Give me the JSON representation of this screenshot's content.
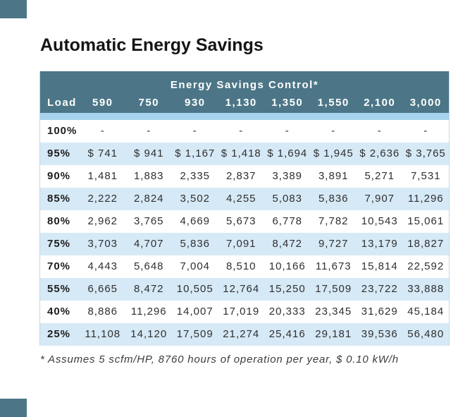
{
  "page": {
    "title": "Automatic Energy Savings"
  },
  "colors": {
    "header_teal": "#4c7687",
    "separator_strip_blue": "#a8d3ee",
    "alt_row_blue": "#d6e9f6",
    "row_white": "#ffffff",
    "text_dark": "#2f2f2f"
  },
  "chart_data": {
    "type": "table",
    "title": "Automatic Energy Savings",
    "group_header": "Energy Savings Control*",
    "columns": [
      "Load",
      "590",
      "750",
      "930",
      "1,130",
      "1,350",
      "1,550",
      "2,100",
      "3,000"
    ],
    "rows": [
      {
        "load": "100%",
        "values": [
          "-",
          "-",
          "-",
          "-",
          "-",
          "-",
          "-",
          "-"
        ]
      },
      {
        "load": "95%",
        "values": [
          "$ 741",
          "$ 941",
          "$ 1,167",
          "$ 1,418",
          "$ 1,694",
          "$ 1,945",
          "$ 2,636",
          "$ 3,765"
        ]
      },
      {
        "load": "90%",
        "values": [
          "1,481",
          "1,883",
          "2,335",
          "2,837",
          "3,389",
          "3,891",
          "5,271",
          "7,531"
        ]
      },
      {
        "load": "85%",
        "values": [
          "2,222",
          "2,824",
          "3,502",
          "4,255",
          "5,083",
          "5,836",
          "7,907",
          "11,296"
        ]
      },
      {
        "load": "80%",
        "values": [
          "2,962",
          "3,765",
          "4,669",
          "5,673",
          "6,778",
          "7,782",
          "10,543",
          "15,061"
        ]
      },
      {
        "load": "75%",
        "values": [
          "3,703",
          "4,707",
          "5,836",
          "7,091",
          "8,472",
          "9,727",
          "13,179",
          "18,827"
        ]
      },
      {
        "load": "70%",
        "values": [
          "4,443",
          "5,648",
          "7,004",
          "8,510",
          "10,166",
          "11,673",
          "15,814",
          "22,592"
        ]
      },
      {
        "load": "55%",
        "values": [
          "6,665",
          "8,472",
          "10,505",
          "12,764",
          "15,250",
          "17,509",
          "23,722",
          "33,888"
        ]
      },
      {
        "load": "40%",
        "values": [
          "8,886",
          "11,296",
          "14,007",
          "17,019",
          "20,333",
          "23,345",
          "31,629",
          "45,184"
        ]
      },
      {
        "load": "25%",
        "values": [
          "11,108",
          "14,120",
          "17,509",
          "21,274",
          "25,416",
          "29,181",
          "39,536",
          "56,480"
        ]
      }
    ],
    "footnote": "* Assumes 5 scfm/HP, 8760 hours of operation per year, $ 0.10 kW/h",
    "legend_position": "none",
    "grid": "off"
  }
}
